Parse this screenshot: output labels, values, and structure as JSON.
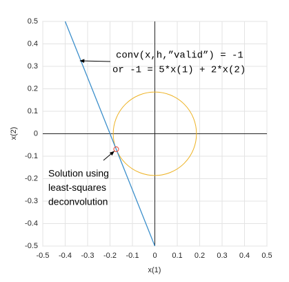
{
  "chart_data": {
    "type": "line",
    "xlabel": "x(1)",
    "ylabel": "x(2)",
    "xlim": [
      -0.5,
      0.5
    ],
    "ylim": [
      -0.5,
      0.5
    ],
    "xticks": [
      -0.5,
      -0.4,
      -0.3,
      -0.2,
      -0.1,
      0,
      0.1,
      0.2,
      0.3,
      0.4,
      0.5
    ],
    "yticks": [
      -0.5,
      -0.4,
      -0.3,
      -0.2,
      -0.1,
      0,
      0.1,
      0.2,
      0.3,
      0.4,
      0.5
    ],
    "grid": true,
    "series": [
      {
        "x": [
          -0.4,
          0
        ],
        "values": [
          0.5,
          -0.5
        ],
        "color": "#3b8fcb"
      },
      {
        "x": [
          -0.1724
        ],
        "values": [
          -0.069
        ],
        "color": "#e8412c",
        "marker": "o"
      }
    ],
    "circle": {
      "center": [
        0,
        0
      ],
      "radius": 0.1857,
      "color": "#edb120"
    },
    "annotations": [
      {
        "lines": [
          "conv(x,h,”valid”) = -1",
          "or -1 = 5*x(1) + 2*x(2)"
        ]
      },
      {
        "lines": [
          "Solution using",
          "least-squares",
          "deconvolution"
        ]
      }
    ]
  }
}
